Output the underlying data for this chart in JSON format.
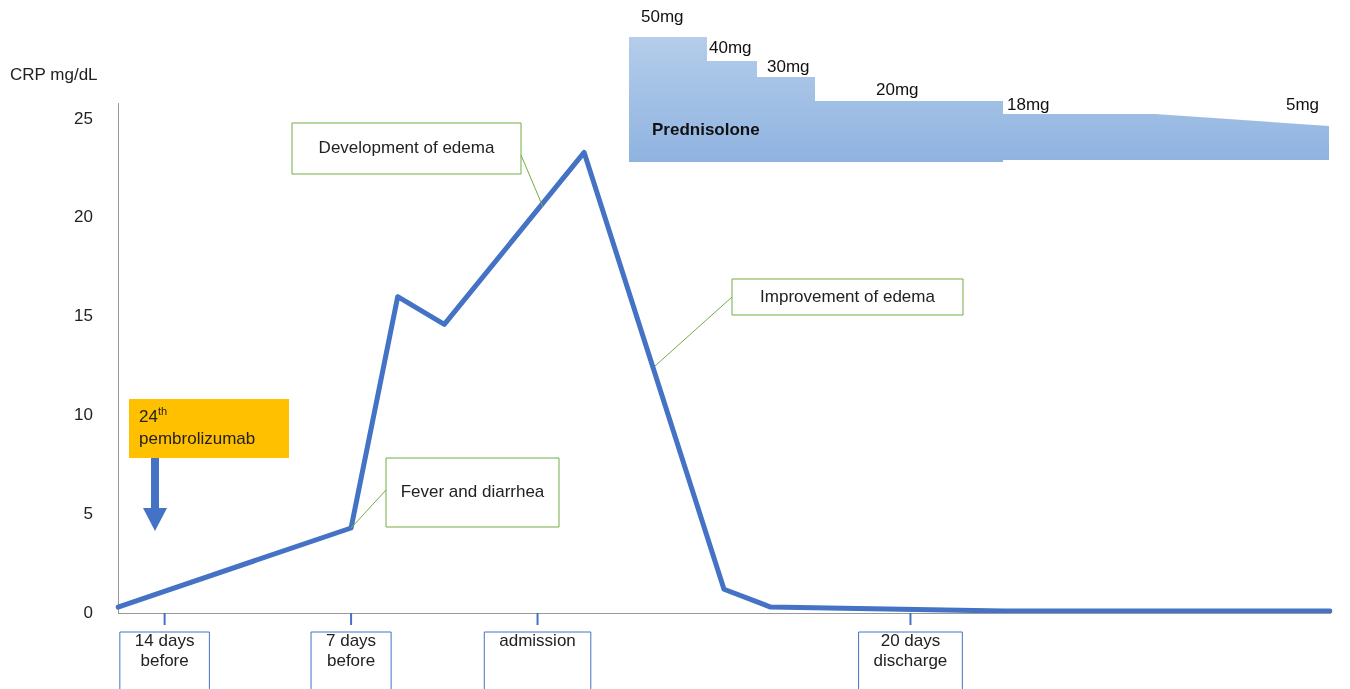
{
  "chart_data": {
    "type": "line",
    "ylabel": "CRP mg/dL",
    "categories": [
      null,
      "14 days before",
      null,
      null,
      null,
      "7 days before",
      null,
      null,
      null,
      "admission",
      null,
      null,
      null,
      null,
      null,
      null,
      null,
      "20 days discharge",
      null,
      null,
      null,
      null,
      null,
      null,
      null,
      null,
      null
    ],
    "series": [
      {
        "color": "#4472c4",
        "values": [
          0.3,
          null,
          null,
          null,
          null,
          4.3,
          16,
          14.6,
          null,
          null,
          23.3,
          null,
          null,
          1.2,
          0.3,
          null,
          null,
          null,
          null,
          0.1,
          null,
          null,
          null,
          null,
          null,
          null,
          0.1
        ]
      }
    ],
    "ylim": [
      0,
      25.8
    ],
    "yticks": [
      0,
      5,
      10,
      15,
      20,
      25
    ],
    "grid": false,
    "line_style": "solid",
    "annotations": [
      "24$^{th}$ pembrolizumab",
      {
        "text": "Fever and diarrhea",
        "x": "7 days before",
        "y": 4.3
      },
      "Development of edema",
      "Improvement of edema",
      "Prednisolone",
      "50mg",
      "40mg",
      "30mg",
      "20mg",
      "18mg",
      "5mg"
    ]
  }
}
